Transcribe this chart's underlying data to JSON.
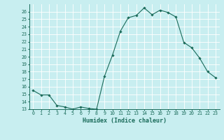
{
  "x": [
    0,
    1,
    2,
    3,
    4,
    5,
    6,
    7,
    8,
    9,
    10,
    11,
    12,
    13,
    14,
    15,
    16,
    17,
    18,
    19,
    20,
    21,
    22,
    23
  ],
  "y": [
    15.5,
    14.9,
    14.9,
    13.5,
    13.3,
    13.0,
    13.3,
    13.1,
    13.0,
    17.4,
    20.2,
    23.4,
    25.2,
    25.5,
    26.5,
    25.6,
    26.2,
    25.9,
    25.3,
    21.9,
    21.2,
    19.8,
    18.0,
    17.2
  ],
  "line_color": "#1a6b5a",
  "marker": "D",
  "marker_size": 1.8,
  "xlabel": "Humidex (Indice chaleur)",
  "bg_color": "#c8eef0",
  "grid_color": "#ffffff",
  "ylim_min": 13,
  "ylim_max": 27,
  "xlim_min": -0.5,
  "xlim_max": 23.5,
  "yticks": [
    13,
    14,
    15,
    16,
    17,
    18,
    19,
    20,
    21,
    22,
    23,
    24,
    25,
    26
  ],
  "xticks": [
    0,
    1,
    2,
    3,
    4,
    5,
    6,
    7,
    8,
    9,
    10,
    11,
    12,
    13,
    14,
    15,
    16,
    17,
    18,
    19,
    20,
    21,
    22,
    23
  ],
  "xtick_labels": [
    "0",
    "1",
    "2",
    "3",
    "4",
    "5",
    "6",
    "7",
    "8",
    "9",
    "10",
    "11",
    "12",
    "13",
    "14",
    "15",
    "16",
    "17",
    "18",
    "19",
    "20",
    "21",
    "22",
    "23"
  ],
  "tick_color": "#1a6b5a",
  "axis_color": "#1a6b5a",
  "font_color": "#1a6b5a",
  "xlabel_fontsize": 6.0,
  "tick_fontsize": 4.8,
  "linewidth": 0.8
}
